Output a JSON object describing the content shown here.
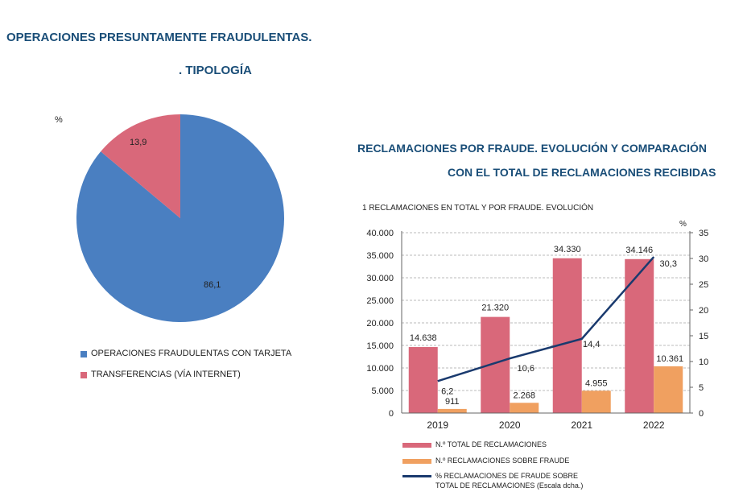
{
  "header": {
    "title": "OPERACIONES PRESUNTAMENTE FRAUDULENTAS.",
    "subtitle": ". TIPOLOGÍA"
  },
  "right_header": {
    "line1": "RECLAMACIONES POR FRAUDE. EVOLUCIÓN Y COMPARACIÓN",
    "line2": "CON EL TOTAL DE RECLAMACIONES RECIBIDAS"
  },
  "chart_data": [
    {
      "type": "pie",
      "unit_label": "%",
      "labels": [
        "OPERACIONES FRAUDULENTAS CON TARJETA",
        "TRANSFERENCIAS (VÍA INTERNET)"
      ],
      "values": [
        86.1,
        13.9
      ],
      "value_labels": [
        "86,1",
        "13,9"
      ],
      "colors": [
        "#4a7fc1",
        "#d9687a"
      ],
      "legend": "bottom"
    },
    {
      "type": "bar",
      "title": "1  RECLAMACIONES EN TOTAL Y POR FRAUDE. EVOLUCIÓN",
      "categories": [
        "2019",
        "2020",
        "2021",
        "2022"
      ],
      "series": [
        {
          "name": "N.º TOTAL DE RECLAMACIONES",
          "type": "bar",
          "values": [
            14638,
            21320,
            34330,
            34146
          ],
          "labels": [
            "14.638",
            "21.320",
            "34.330",
            "34.146"
          ],
          "color": "#d9687a"
        },
        {
          "name": "N.º RECLAMACIONES SOBRE FRAUDE",
          "type": "bar",
          "values": [
            911,
            2268,
            4955,
            10361
          ],
          "labels": [
            "911",
            "2.268",
            "4.955",
            "10.361"
          ],
          "color": "#f0a060"
        },
        {
          "name": "% RECLAMACIONES DE FRAUDE SOBRE",
          "name2": "TOTAL DE RECLAMACIONES (Escala dcha.)",
          "type": "line",
          "axis": "right",
          "values": [
            6.2,
            10.6,
            14.4,
            30.3
          ],
          "labels": [
            "6,2",
            "10,6",
            "14,4",
            "30,3"
          ],
          "color": "#1a3a6e"
        }
      ],
      "ylim": [
        0,
        40000
      ],
      "yticks": [
        "0",
        "5.000",
        "10.000",
        "15.000",
        "20.000",
        "25.000",
        "30.000",
        "35.000",
        "40.000"
      ],
      "y2lim": [
        0,
        35
      ],
      "y2ticks": [
        "0",
        "5",
        "10",
        "15",
        "20",
        "25",
        "30",
        "35"
      ],
      "y2label": "%",
      "grid": "dashed horizontal",
      "legend": "bottom-left"
    }
  ]
}
